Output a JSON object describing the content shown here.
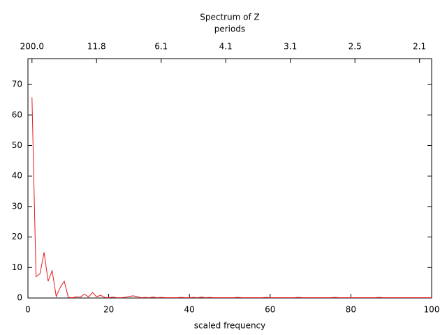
{
  "chart_data": {
    "type": "line",
    "title": "Spectrum of Z",
    "x2label": "periods",
    "xlabel": "scaled frequency",
    "color": "#e41a1c",
    "x": [
      1,
      2,
      3,
      4,
      5,
      6,
      7,
      8,
      9,
      10,
      11,
      12,
      13,
      14,
      15,
      16,
      17,
      18,
      19,
      20,
      21,
      22,
      23,
      24,
      25,
      26,
      27,
      28,
      29,
      30,
      31,
      32,
      33,
      34,
      35,
      36,
      37,
      38,
      39,
      40,
      41,
      42,
      43,
      44,
      45,
      46,
      47,
      48,
      49,
      50,
      51,
      52,
      53,
      54,
      55,
      56,
      57,
      58,
      59,
      60,
      61,
      62,
      63,
      64,
      65,
      66,
      67,
      68,
      69,
      70,
      71,
      72,
      73,
      74,
      75,
      76,
      77,
      78,
      79,
      80,
      81,
      82,
      83,
      84,
      85,
      86,
      87,
      88,
      89,
      90,
      91,
      92,
      93,
      94,
      95,
      96,
      97,
      98,
      99,
      100
    ],
    "values": [
      65.8,
      7,
      8,
      15,
      5.5,
      9,
      0.5,
      3.5,
      5.5,
      0.2,
      0.1,
      0.4,
      0.3,
      1.3,
      0.3,
      1.8,
      0.4,
      0.9,
      0.2,
      0.1,
      0.3,
      0.1,
      0.1,
      0.2,
      0.5,
      0.7,
      0.5,
      0.1,
      0.2,
      0.1,
      0.3,
      0.1,
      0.2,
      0.1,
      0.1,
      0.1,
      0.1,
      0.2,
      0.1,
      0.1,
      0.2,
      0.1,
      0.3,
      0.1,
      0.2,
      0.1,
      0.1,
      0.1,
      0.1,
      0.1,
      0.1,
      0.2,
      0.1,
      0.1,
      0.1,
      0.1,
      0.1,
      0.1,
      0.2,
      0.1,
      0.1,
      0.1,
      0.1,
      0.1,
      0.1,
      0.1,
      0.2,
      0.1,
      0.1,
      0.1,
      0.1,
      0.1,
      0.1,
      0.1,
      0.1,
      0.2,
      0.1,
      0.1,
      0.1,
      0.1,
      0.1,
      0.1,
      0.1,
      0.1,
      0.1,
      0.1,
      0.2,
      0.1,
      0.1,
      0.1,
      0.1,
      0.1,
      0.1,
      0.1,
      0.1,
      0.1,
      0.1,
      0.1,
      0.1,
      0.1
    ],
    "xlim": [
      0,
      100
    ],
    "xticks": [
      0,
      20,
      40,
      60,
      80,
      100
    ],
    "ylim": [
      0,
      78.5
    ],
    "yticks": [
      0,
      10,
      20,
      30,
      40,
      50,
      60,
      70
    ],
    "x2ticks": [
      {
        "value": 1,
        "label": "200.0"
      },
      {
        "value": 17,
        "label": "11.8"
      },
      {
        "value": 33,
        "label": "6.1"
      },
      {
        "value": 49,
        "label": "4.1"
      },
      {
        "value": 65,
        "label": "3.1"
      },
      {
        "value": 81,
        "label": "2.5"
      },
      {
        "value": 97,
        "label": "2.1"
      }
    ]
  }
}
